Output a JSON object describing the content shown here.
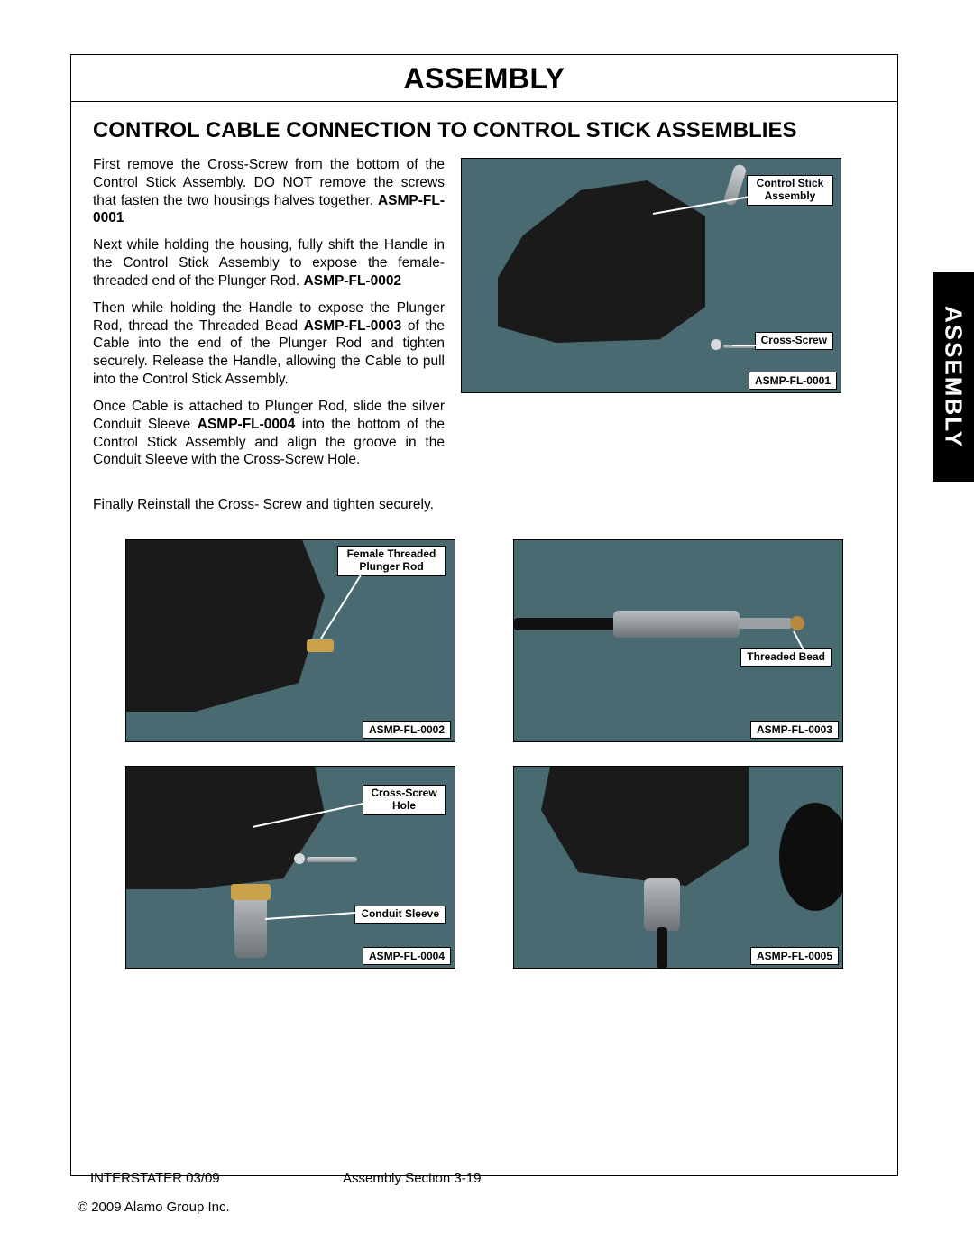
{
  "page": {
    "title": "ASSEMBLY",
    "side_tab": "ASSEMBLY",
    "section_heading": "CONTROL CABLE CONNECTION TO CONTROL STICK ASSEMBLIES",
    "footer_left": "INTERSTATER   03/09",
    "footer_center": "Assembly Section 3-19",
    "copyright": "© 2009 Alamo Group Inc."
  },
  "paragraphs": {
    "p1_a": "First remove the Cross-Screw from the bottom of the Control Stick Assembly. DO NOT remove the screws that fasten the two housings halves together. ",
    "p1_b": "ASMP-FL-0001",
    "p2_a": "Next while holding the housing, fully shift the Handle in the Control Stick Assembly to expose the female-threaded end of the Plunger Rod. ",
    "p2_b": "ASMP-FL-0002",
    "p3_a": "Then while holding the Handle to expose the Plunger Rod, thread the Threaded Bead ",
    "p3_b": "ASMP-FL-0003",
    "p3_c": " of the Cable into the end of the Plunger Rod and tighten securely. Release the Handle, allowing the Cable to pull into the Control Stick Assembly.",
    "p4_a": "Once Cable is attached to Plunger Rod, slide the silver Conduit Sleeve ",
    "p4_b": "ASMP-FL-0004",
    "p4_c": " into the bottom of the Control Stick Assembly and align the groove in the Conduit Sleeve with the Cross-Screw Hole.",
    "p5": "Finally Reinstall the Cross- Screw and tighten securely."
  },
  "figures": {
    "top": {
      "caption": "ASMP-FL-0001",
      "callouts": {
        "control_stick": "Control Stick\nAssembly",
        "cross_screw": "Cross-Screw"
      }
    },
    "g1": {
      "caption": "ASMP-FL-0002",
      "callouts": {
        "plunger_rod": "Female Threaded\nPlunger Rod"
      }
    },
    "g2": {
      "caption": "ASMP-FL-0003",
      "callouts": {
        "bead": "Threaded Bead"
      }
    },
    "g3": {
      "caption": "ASMP-FL-0004",
      "callouts": {
        "hole": "Cross-Screw\nHole",
        "sleeve": "Conduit Sleeve"
      }
    },
    "g4": {
      "caption": "ASMP-FL-0005"
    }
  },
  "colors": {
    "photo_bg": "#4a6a72",
    "assembly_body": "#1a1a1a",
    "metal": "#b8bcc0"
  }
}
